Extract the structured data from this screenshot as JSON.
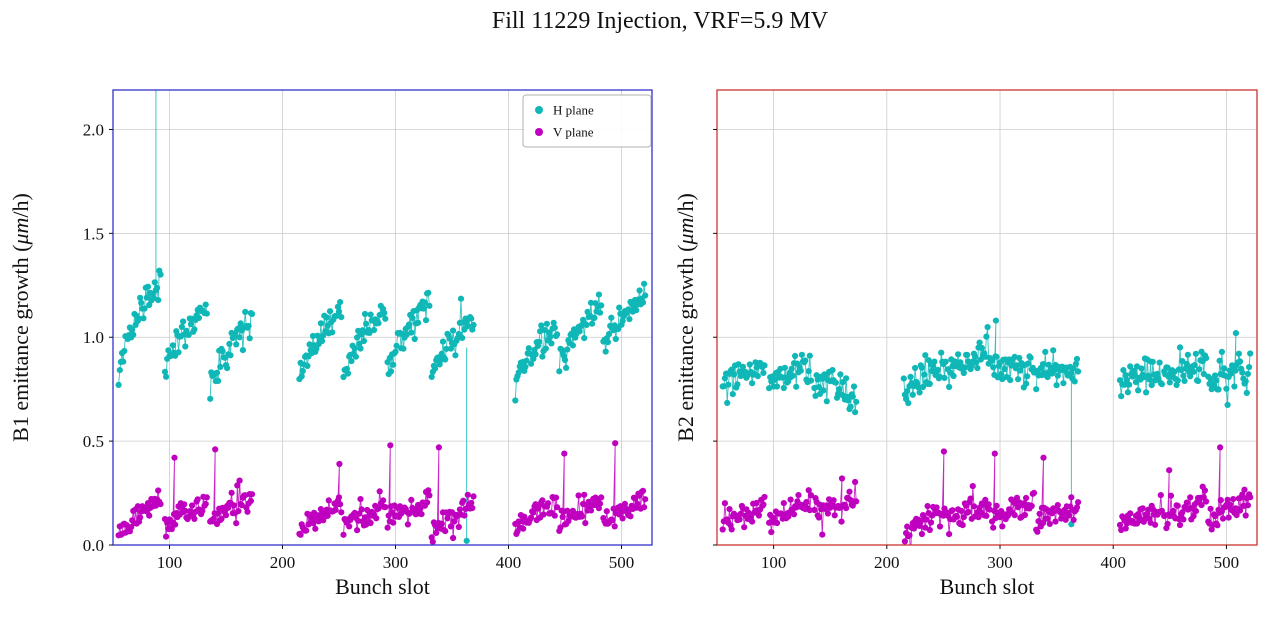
{
  "page": {
    "background": "#ffffff"
  },
  "chart_data": {
    "type": "scatter",
    "title": "Fill 11229 Injection, VRF=5.9 MV",
    "xlabel": "Bunch slot",
    "xlim": [
      50,
      527
    ],
    "ylim": [
      0,
      2.19
    ],
    "xticks": [
      100,
      200,
      300,
      400,
      500
    ],
    "yticks": [
      0.0,
      0.5,
      1.0,
      1.5,
      2.0
    ],
    "grid": true,
    "grid_color": "#cccccc",
    "colors": {
      "h_plane": "#10b7b7",
      "v_plane": "#bf00bf",
      "b1_spine": "#3333cc",
      "b2_spine": "#cc3333"
    },
    "legend": {
      "location": "upper right of B1 subplot",
      "entries": [
        {
          "label": "H plane",
          "color_key": "h_plane"
        },
        {
          "label": "V plane",
          "color_key": "v_plane"
        }
      ]
    },
    "subplots": [
      {
        "name": "B1",
        "ylabel": "B1 emittance growth (μm/h)",
        "ylabel_prefix": "B1 emittance growth (",
        "ylabel_math": "μm",
        "ylabel_suffix": "/h)",
        "show_ytick_labels": true,
        "spine": "b1_spine",
        "series": [
          {
            "name": "H plane",
            "color_key": "h_plane",
            "seed": 11,
            "sigma": 0.035,
            "trains": [
              [
                55,
                92,
                0.76,
                1.27,
                0.5
              ],
              [
                96,
                133,
                0.84,
                1.14,
                0.6
              ],
              [
                136,
                173,
                0.72,
                1.1,
                0.55
              ],
              [
                215,
                252,
                0.76,
                1.15,
                0.55
              ],
              [
                254,
                291,
                0.8,
                1.13,
                0.6
              ],
              [
                293,
                330,
                0.84,
                1.15,
                0.6
              ],
              [
                332,
                369,
                0.8,
                1.09,
                0.6
              ],
              [
                406,
                443,
                0.77,
                1.05,
                0.6
              ],
              [
                445,
                482,
                0.84,
                1.16,
                0.6
              ],
              [
                484,
                521,
                0.96,
                1.2,
                0.8
              ]
            ],
            "spikes": [],
            "spike_lines": [
              [
                88,
                1.2,
                2.3
              ],
              [
                363,
                0.95,
                0.02
              ]
            ]
          },
          {
            "name": "V plane",
            "color_key": "v_plane",
            "seed": 22,
            "sigma": 0.028,
            "trains": [
              [
                55,
                92,
                0.07,
                0.22,
                0.8
              ],
              [
                96,
                133,
                0.09,
                0.2,
                0.8
              ],
              [
                136,
                173,
                0.1,
                0.24,
                0.8
              ],
              [
                215,
                252,
                0.06,
                0.2,
                0.8
              ],
              [
                254,
                291,
                0.09,
                0.18,
                0.8
              ],
              [
                293,
                330,
                0.1,
                0.21,
                0.8
              ],
              [
                332,
                369,
                0.05,
                0.22,
                0.8
              ],
              [
                406,
                443,
                0.08,
                0.2,
                0.8
              ],
              [
                445,
                482,
                0.11,
                0.22,
                0.8
              ],
              [
                484,
                521,
                0.09,
                0.22,
                0.8
              ]
            ],
            "spikes": [
              [
                104,
                0.42
              ],
              [
                140,
                0.46
              ],
              [
                250,
                0.39
              ],
              [
                295,
                0.48
              ],
              [
                338,
                0.47
              ],
              [
                449,
                0.44
              ],
              [
                494,
                0.49
              ]
            ],
            "spike_lines": []
          }
        ]
      },
      {
        "name": "B2",
        "ylabel": "B2 emittance growth (μm/h)",
        "ylabel_prefix": "B2 emittance growth (",
        "ylabel_math": "μm",
        "ylabel_suffix": "/h)",
        "show_ytick_labels": false,
        "spine": "b2_spine",
        "series": [
          {
            "name": "H plane",
            "color_key": "h_plane",
            "seed": 33,
            "sigma": 0.04,
            "trains": [
              [
                55,
                92,
                0.74,
                0.86,
                0.7
              ],
              [
                96,
                133,
                0.79,
                0.84,
                0.7
              ],
              [
                136,
                173,
                0.8,
                0.7,
                1.0
              ],
              [
                215,
                252,
                0.68,
                0.89,
                0.6
              ],
              [
                254,
                291,
                0.83,
                0.91,
                0.7
              ],
              [
                293,
                330,
                0.88,
                0.84,
                1.0
              ],
              [
                332,
                369,
                0.84,
                0.83,
                1.0
              ],
              [
                406,
                443,
                0.77,
                0.84,
                0.8
              ],
              [
                445,
                482,
                0.81,
                0.88,
                0.8
              ],
              [
                484,
                521,
                0.79,
                0.86,
                0.8
              ]
            ],
            "spikes": [
              [
                296,
                1.08
              ],
              [
                508,
                1.02
              ]
            ],
            "spike_lines": [
              [
                363,
                0.82,
                0.1
              ]
            ]
          },
          {
            "name": "V plane",
            "color_key": "v_plane",
            "seed": 44,
            "sigma": 0.03,
            "trains": [
              [
                55,
                92,
                0.1,
                0.18,
                0.8
              ],
              [
                96,
                133,
                0.12,
                0.2,
                0.8
              ],
              [
                136,
                173,
                0.13,
                0.22,
                0.8
              ],
              [
                215,
                252,
                0.03,
                0.18,
                0.7
              ],
              [
                254,
                291,
                0.11,
                0.2,
                0.8
              ],
              [
                293,
                330,
                0.11,
                0.21,
                0.8
              ],
              [
                332,
                369,
                0.1,
                0.2,
                0.8
              ],
              [
                406,
                443,
                0.09,
                0.18,
                0.8
              ],
              [
                445,
                482,
                0.12,
                0.21,
                0.8
              ],
              [
                484,
                521,
                0.11,
                0.23,
                0.8
              ]
            ],
            "spikes": [
              [
                160,
                0.32
              ],
              [
                250,
                0.45
              ],
              [
                295,
                0.44
              ],
              [
                338,
                0.42
              ],
              [
                449,
                0.36
              ],
              [
                494,
                0.47
              ]
            ],
            "spike_lines": []
          }
        ]
      }
    ]
  }
}
